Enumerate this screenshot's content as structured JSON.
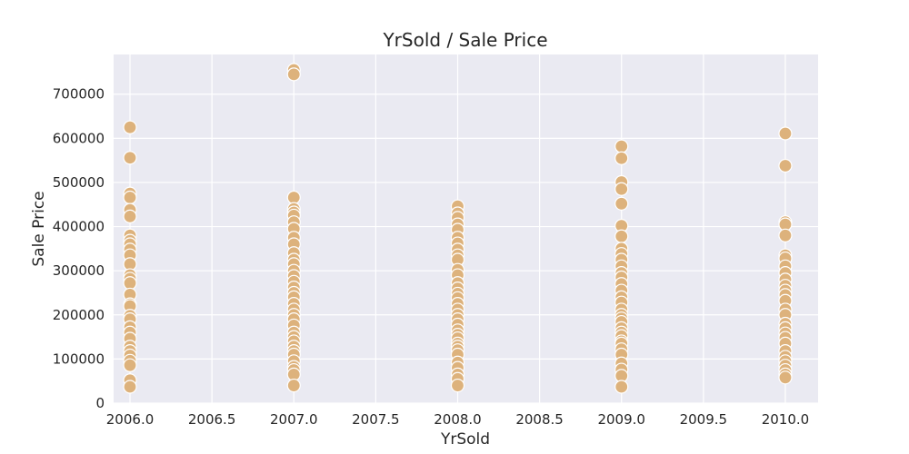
{
  "chart_data": {
    "type": "scatter",
    "title": "YrSold / Sale Price",
    "xlabel": "YrSold",
    "ylabel": "Sale Price",
    "xlim": [
      2005.9,
      2010.2
    ],
    "ylim": [
      0,
      790000
    ],
    "xticks": [
      2006.0,
      2006.5,
      2007.0,
      2007.5,
      2008.0,
      2008.5,
      2009.0,
      2009.5,
      2010.0
    ],
    "xtick_labels": [
      "2006.0",
      "2006.5",
      "2007.0",
      "2007.5",
      "2008.0",
      "2008.5",
      "2009.0",
      "2009.5",
      "2010.0"
    ],
    "yticks": [
      0,
      100000,
      200000,
      300000,
      400000,
      500000,
      600000,
      700000
    ],
    "ytick_labels": [
      "0",
      "100000",
      "200000",
      "300000",
      "400000",
      "500000",
      "600000",
      "700000"
    ],
    "grid": true,
    "colors": {
      "background": "#eaeaf2",
      "point": "#ddb27c",
      "grid": "#ffffff"
    },
    "points": [
      {
        "x": 2006,
        "y": 625000
      },
      {
        "x": 2006,
        "y": 556000
      },
      {
        "x": 2006,
        "y": 475000
      },
      {
        "x": 2006,
        "y": 466000
      },
      {
        "x": 2006,
        "y": 438000
      },
      {
        "x": 2006,
        "y": 423000
      },
      {
        "x": 2006,
        "y": 380000
      },
      {
        "x": 2006,
        "y": 368000
      },
      {
        "x": 2006,
        "y": 360000
      },
      {
        "x": 2006,
        "y": 348000
      },
      {
        "x": 2006,
        "y": 335000
      },
      {
        "x": 2006,
        "y": 315000
      },
      {
        "x": 2006,
        "y": 290000
      },
      {
        "x": 2006,
        "y": 282000
      },
      {
        "x": 2006,
        "y": 272000
      },
      {
        "x": 2006,
        "y": 246000
      },
      {
        "x": 2006,
        "y": 224000
      },
      {
        "x": 2006,
        "y": 220000
      },
      {
        "x": 2006,
        "y": 198000
      },
      {
        "x": 2006,
        "y": 190000
      },
      {
        "x": 2006,
        "y": 172000
      },
      {
        "x": 2006,
        "y": 160000
      },
      {
        "x": 2006,
        "y": 146000
      },
      {
        "x": 2006,
        "y": 128000
      },
      {
        "x": 2006,
        "y": 118000
      },
      {
        "x": 2006,
        "y": 108000
      },
      {
        "x": 2006,
        "y": 96000
      },
      {
        "x": 2006,
        "y": 86000
      },
      {
        "x": 2006,
        "y": 52000
      },
      {
        "x": 2006,
        "y": 37000
      },
      {
        "x": 2007,
        "y": 755000
      },
      {
        "x": 2007,
        "y": 745000
      },
      {
        "x": 2007,
        "y": 466000
      },
      {
        "x": 2007,
        "y": 440000
      },
      {
        "x": 2007,
        "y": 432000
      },
      {
        "x": 2007,
        "y": 425000
      },
      {
        "x": 2007,
        "y": 410000
      },
      {
        "x": 2007,
        "y": 395000
      },
      {
        "x": 2007,
        "y": 375000
      },
      {
        "x": 2007,
        "y": 360000
      },
      {
        "x": 2007,
        "y": 340000
      },
      {
        "x": 2007,
        "y": 325000
      },
      {
        "x": 2007,
        "y": 315000
      },
      {
        "x": 2007,
        "y": 300000
      },
      {
        "x": 2007,
        "y": 288000
      },
      {
        "x": 2007,
        "y": 275000
      },
      {
        "x": 2007,
        "y": 262000
      },
      {
        "x": 2007,
        "y": 250000
      },
      {
        "x": 2007,
        "y": 240000
      },
      {
        "x": 2007,
        "y": 225000
      },
      {
        "x": 2007,
        "y": 212000
      },
      {
        "x": 2007,
        "y": 200000
      },
      {
        "x": 2007,
        "y": 190000
      },
      {
        "x": 2007,
        "y": 176000
      },
      {
        "x": 2007,
        "y": 160000
      },
      {
        "x": 2007,
        "y": 150000
      },
      {
        "x": 2007,
        "y": 140000
      },
      {
        "x": 2007,
        "y": 128000
      },
      {
        "x": 2007,
        "y": 118000
      },
      {
        "x": 2007,
        "y": 110000
      },
      {
        "x": 2007,
        "y": 95000
      },
      {
        "x": 2007,
        "y": 82000
      },
      {
        "x": 2007,
        "y": 75000
      },
      {
        "x": 2007,
        "y": 65000
      },
      {
        "x": 2007,
        "y": 40000
      },
      {
        "x": 2008,
        "y": 446000
      },
      {
        "x": 2008,
        "y": 430000
      },
      {
        "x": 2008,
        "y": 420000
      },
      {
        "x": 2008,
        "y": 405000
      },
      {
        "x": 2008,
        "y": 393000
      },
      {
        "x": 2008,
        "y": 375000
      },
      {
        "x": 2008,
        "y": 362000
      },
      {
        "x": 2008,
        "y": 348000
      },
      {
        "x": 2008,
        "y": 335000
      },
      {
        "x": 2008,
        "y": 325000
      },
      {
        "x": 2008,
        "y": 302000
      },
      {
        "x": 2008,
        "y": 290000
      },
      {
        "x": 2008,
        "y": 272000
      },
      {
        "x": 2008,
        "y": 260000
      },
      {
        "x": 2008,
        "y": 248000
      },
      {
        "x": 2008,
        "y": 238000
      },
      {
        "x": 2008,
        "y": 225000
      },
      {
        "x": 2008,
        "y": 212000
      },
      {
        "x": 2008,
        "y": 200000
      },
      {
        "x": 2008,
        "y": 190000
      },
      {
        "x": 2008,
        "y": 178000
      },
      {
        "x": 2008,
        "y": 165000
      },
      {
        "x": 2008,
        "y": 155000
      },
      {
        "x": 2008,
        "y": 147000
      },
      {
        "x": 2008,
        "y": 135000
      },
      {
        "x": 2008,
        "y": 128000
      },
      {
        "x": 2008,
        "y": 120000
      },
      {
        "x": 2008,
        "y": 110000
      },
      {
        "x": 2008,
        "y": 92000
      },
      {
        "x": 2008,
        "y": 80000
      },
      {
        "x": 2008,
        "y": 65000
      },
      {
        "x": 2008,
        "y": 55000
      },
      {
        "x": 2008,
        "y": 40000
      },
      {
        "x": 2009,
        "y": 582000
      },
      {
        "x": 2009,
        "y": 555000
      },
      {
        "x": 2009,
        "y": 501000
      },
      {
        "x": 2009,
        "y": 485000
      },
      {
        "x": 2009,
        "y": 452000
      },
      {
        "x": 2009,
        "y": 402000
      },
      {
        "x": 2009,
        "y": 378000
      },
      {
        "x": 2009,
        "y": 350000
      },
      {
        "x": 2009,
        "y": 338000
      },
      {
        "x": 2009,
        "y": 325000
      },
      {
        "x": 2009,
        "y": 310000
      },
      {
        "x": 2009,
        "y": 295000
      },
      {
        "x": 2009,
        "y": 285000
      },
      {
        "x": 2009,
        "y": 270000
      },
      {
        "x": 2009,
        "y": 255000
      },
      {
        "x": 2009,
        "y": 240000
      },
      {
        "x": 2009,
        "y": 228000
      },
      {
        "x": 2009,
        "y": 212000
      },
      {
        "x": 2009,
        "y": 200000
      },
      {
        "x": 2009,
        "y": 192000
      },
      {
        "x": 2009,
        "y": 184000
      },
      {
        "x": 2009,
        "y": 170000
      },
      {
        "x": 2009,
        "y": 160000
      },
      {
        "x": 2009,
        "y": 152000
      },
      {
        "x": 2009,
        "y": 140000
      },
      {
        "x": 2009,
        "y": 135000
      },
      {
        "x": 2009,
        "y": 122000
      },
      {
        "x": 2009,
        "y": 110000
      },
      {
        "x": 2009,
        "y": 90000
      },
      {
        "x": 2009,
        "y": 76000
      },
      {
        "x": 2009,
        "y": 62000
      },
      {
        "x": 2009,
        "y": 37000
      },
      {
        "x": 2010,
        "y": 611000
      },
      {
        "x": 2010,
        "y": 538000
      },
      {
        "x": 2010,
        "y": 410000
      },
      {
        "x": 2010,
        "y": 405000
      },
      {
        "x": 2010,
        "y": 380000
      },
      {
        "x": 2010,
        "y": 335000
      },
      {
        "x": 2010,
        "y": 328000
      },
      {
        "x": 2010,
        "y": 310000
      },
      {
        "x": 2010,
        "y": 295000
      },
      {
        "x": 2010,
        "y": 280000
      },
      {
        "x": 2010,
        "y": 266000
      },
      {
        "x": 2010,
        "y": 255000
      },
      {
        "x": 2010,
        "y": 245000
      },
      {
        "x": 2010,
        "y": 232000
      },
      {
        "x": 2010,
        "y": 212000
      },
      {
        "x": 2010,
        "y": 200000
      },
      {
        "x": 2010,
        "y": 180000
      },
      {
        "x": 2010,
        "y": 170000
      },
      {
        "x": 2010,
        "y": 158000
      },
      {
        "x": 2010,
        "y": 148000
      },
      {
        "x": 2010,
        "y": 135000
      },
      {
        "x": 2010,
        "y": 118000
      },
      {
        "x": 2010,
        "y": 105000
      },
      {
        "x": 2010,
        "y": 95000
      },
      {
        "x": 2010,
        "y": 85000
      },
      {
        "x": 2010,
        "y": 75000
      },
      {
        "x": 2010,
        "y": 65000
      },
      {
        "x": 2010,
        "y": 58000
      }
    ]
  }
}
